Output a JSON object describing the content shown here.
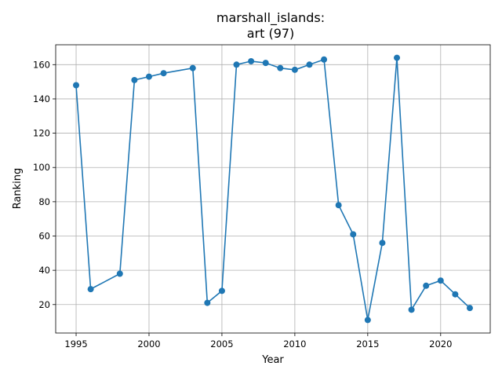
{
  "chart_data": {
    "type": "line",
    "title_line1": "marshall_islands:",
    "title_line2": "art (97)",
    "xlabel": "Year",
    "ylabel": "Ranking",
    "xlim": [
      1993.6,
      2023.4
    ],
    "ylim": [
      3.4,
      171.6
    ],
    "xticks": [
      1995,
      2000,
      2005,
      2010,
      2015,
      2020
    ],
    "yticks": [
      20,
      40,
      60,
      80,
      100,
      120,
      140,
      160
    ],
    "grid": true,
    "color": "#1f77b4",
    "series": [
      {
        "x": [
          1995,
          1996,
          1998,
          1999,
          2000,
          2001,
          2003,
          2004,
          2005,
          2006,
          2007,
          2008,
          2009,
          2010,
          2011,
          2012,
          2013,
          2014,
          2015,
          2016,
          2017,
          2018,
          2019,
          2020,
          2021,
          2022
        ],
        "y": [
          148,
          29,
          38,
          151,
          153,
          155,
          158,
          21,
          28,
          160,
          162,
          161,
          158,
          157,
          160,
          163,
          78,
          61,
          11,
          56,
          164,
          17,
          31,
          34,
          26,
          18
        ]
      }
    ]
  }
}
